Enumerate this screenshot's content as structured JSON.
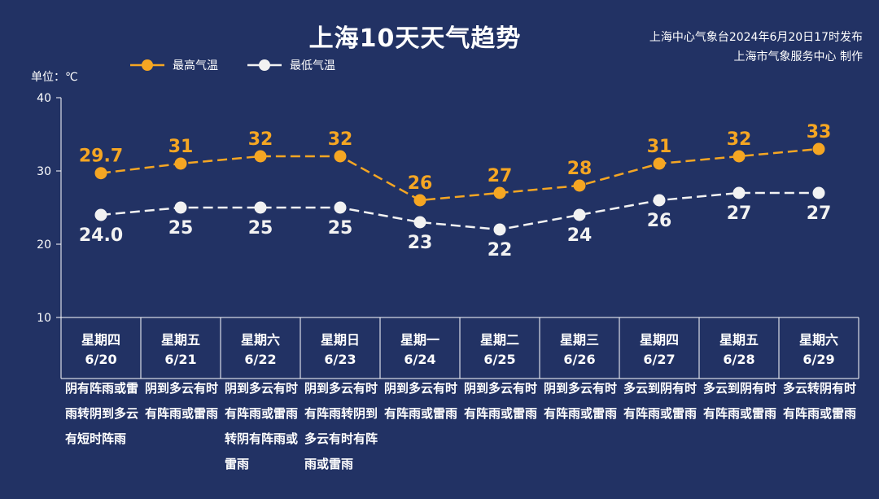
{
  "header": {
    "title": "上海10天天气趋势",
    "source_line1": "上海中心气象台2024年6月20日17时发布",
    "source_line2": "上海市气象服务中心 制作",
    "unit": "单位：℃"
  },
  "colors": {
    "background": "#223264",
    "high": "#F5A623",
    "low": "#F2F2F2",
    "axis": "#FFFFFF"
  },
  "chart_data": {
    "type": "line",
    "ylim": [
      10,
      40
    ],
    "yticks": [
      10,
      20,
      30,
      40
    ],
    "grid": false,
    "legend_position": "top-left",
    "categories": [
      "星期四 6/20",
      "星期五 6/21",
      "星期六 6/22",
      "星期日 6/23",
      "星期一 6/24",
      "星期二 6/25",
      "星期三 6/26",
      "星期四 6/27",
      "星期五 6/28",
      "星期六 6/29"
    ],
    "series": [
      {
        "name": "最高气温",
        "values": [
          29.7,
          31,
          32,
          32,
          26,
          27,
          28,
          31,
          32,
          33
        ],
        "labels": [
          "29.7",
          "31",
          "32",
          "32",
          "26",
          "27",
          "28",
          "31",
          "32",
          "33"
        ]
      },
      {
        "name": "最低气温",
        "values": [
          24.0,
          25,
          25,
          25,
          23,
          22,
          24,
          26,
          27,
          27
        ],
        "labels": [
          "24.0",
          "25",
          "25",
          "25",
          "23",
          "22",
          "24",
          "26",
          "27",
          "27"
        ]
      }
    ]
  },
  "days": [
    {
      "weekday": "星期四",
      "date": "6/20",
      "weather": "阴有阵雨或雷雨转阴到多云有短时阵雨"
    },
    {
      "weekday": "星期五",
      "date": "6/21",
      "weather": "阴到多云有时有阵雨或雷雨"
    },
    {
      "weekday": "星期六",
      "date": "6/22",
      "weather": "阴到多云有时有阵雨或雷雨转阴有阵雨或雷雨"
    },
    {
      "weekday": "星期日",
      "date": "6/23",
      "weather": "阴到多云有时有阵雨转阴到多云有时有阵雨或雷雨"
    },
    {
      "weekday": "星期一",
      "date": "6/24",
      "weather": "阴到多云有时有阵雨或雷雨"
    },
    {
      "weekday": "星期二",
      "date": "6/25",
      "weather": "阴到多云有时有阵雨或雷雨"
    },
    {
      "weekday": "星期三",
      "date": "6/26",
      "weather": "阴到多云有时有阵雨或雷雨"
    },
    {
      "weekday": "星期四",
      "date": "6/27",
      "weather": "多云到阴有时有阵雨或雷雨"
    },
    {
      "weekday": "星期五",
      "date": "6/28",
      "weather": "多云到阴有时有阵雨或雷雨"
    },
    {
      "weekday": "星期六",
      "date": "6/29",
      "weather": "多云转阴有时有阵雨或雷雨"
    }
  ]
}
